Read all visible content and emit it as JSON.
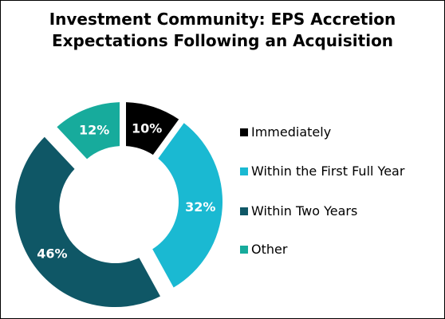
{
  "chart_data": {
    "type": "pie",
    "title": [
      "Investment Community: EPS Accretion",
      "Expectations Following an Acquisition"
    ],
    "categories": [
      "Immediately",
      "Within the First Full Year",
      "Within Two Years",
      "Other"
    ],
    "values": [
      10,
      32,
      46,
      12
    ],
    "data_labels": [
      "10%",
      "32%",
      "46%",
      "12%"
    ],
    "colors": [
      "#000000",
      "#1ab9d2",
      "#0f5766",
      "#17ab9c"
    ],
    "label_colors": [
      "#ffffff",
      "#ffffff",
      "#ffffff",
      "#ffffff"
    ],
    "legend_placement": "right",
    "hole": "donut",
    "exploded_slice": "Within Two Years"
  }
}
